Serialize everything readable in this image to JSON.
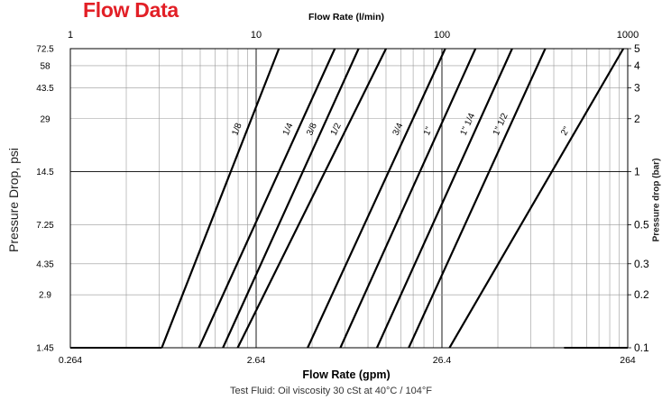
{
  "page_title": "Flow Data",
  "footer_note": "Test Fluid: Oil viscosity 30 cSt at 40°C / 104°F",
  "chart_data": {
    "type": "line",
    "x_scale": "log",
    "y_scale": "log",
    "grid": true,
    "xlabel_bottom": "Flow Rate (gpm)",
    "xlabel_top": "Flow Rate (l/min)",
    "ylabel_left": "Pressure Drop, psi",
    "ylabel_right": "Pressure drop (bar)",
    "xlim": [
      0.264,
      264
    ],
    "ylim": [
      1.45,
      72.5
    ],
    "x_ticks_bottom": [
      "0.264",
      "2.64",
      "26.4",
      "264"
    ],
    "x_ticks_top": [
      "1",
      "10",
      "100",
      "1000"
    ],
    "y_ticks_left": [
      "1.45",
      "2.9",
      "4.35",
      "7.25",
      "14.5",
      "29",
      "43.5",
      "58",
      "72.5"
    ],
    "y_ticks_right": [
      "0.1",
      "0.2",
      "0.3",
      "0.5",
      "1",
      "2",
      "3",
      "4",
      "5"
    ],
    "series": [
      {
        "name": "1/8",
        "points": [
          [
            0.82,
            1.45
          ],
          [
            3.5,
            72.5
          ]
        ]
      },
      {
        "name": "1/4",
        "points": [
          [
            1.3,
            1.45
          ],
          [
            7.0,
            72.5
          ]
        ]
      },
      {
        "name": "3/8",
        "points": [
          [
            1.75,
            1.45
          ],
          [
            9.4,
            72.5
          ]
        ]
      },
      {
        "name": "1/2",
        "points": [
          [
            2.1,
            1.45
          ],
          [
            13.2,
            72.5
          ]
        ]
      },
      {
        "name": "3/4",
        "points": [
          [
            5.0,
            1.45
          ],
          [
            27.5,
            72.5
          ]
        ]
      },
      {
        "name": "1\"",
        "points": [
          [
            7.5,
            1.45
          ],
          [
            40.0,
            72.5
          ]
        ]
      },
      {
        "name": "1\" 1/4",
        "points": [
          [
            11.8,
            1.45
          ],
          [
            63.0,
            72.5
          ]
        ]
      },
      {
        "name": "1\" 1/2",
        "points": [
          [
            17.5,
            1.45
          ],
          [
            95.0,
            72.5
          ]
        ]
      },
      {
        "name": "2\"",
        "points": [
          [
            29.0,
            1.45
          ],
          [
            250.0,
            72.5
          ]
        ]
      }
    ]
  }
}
